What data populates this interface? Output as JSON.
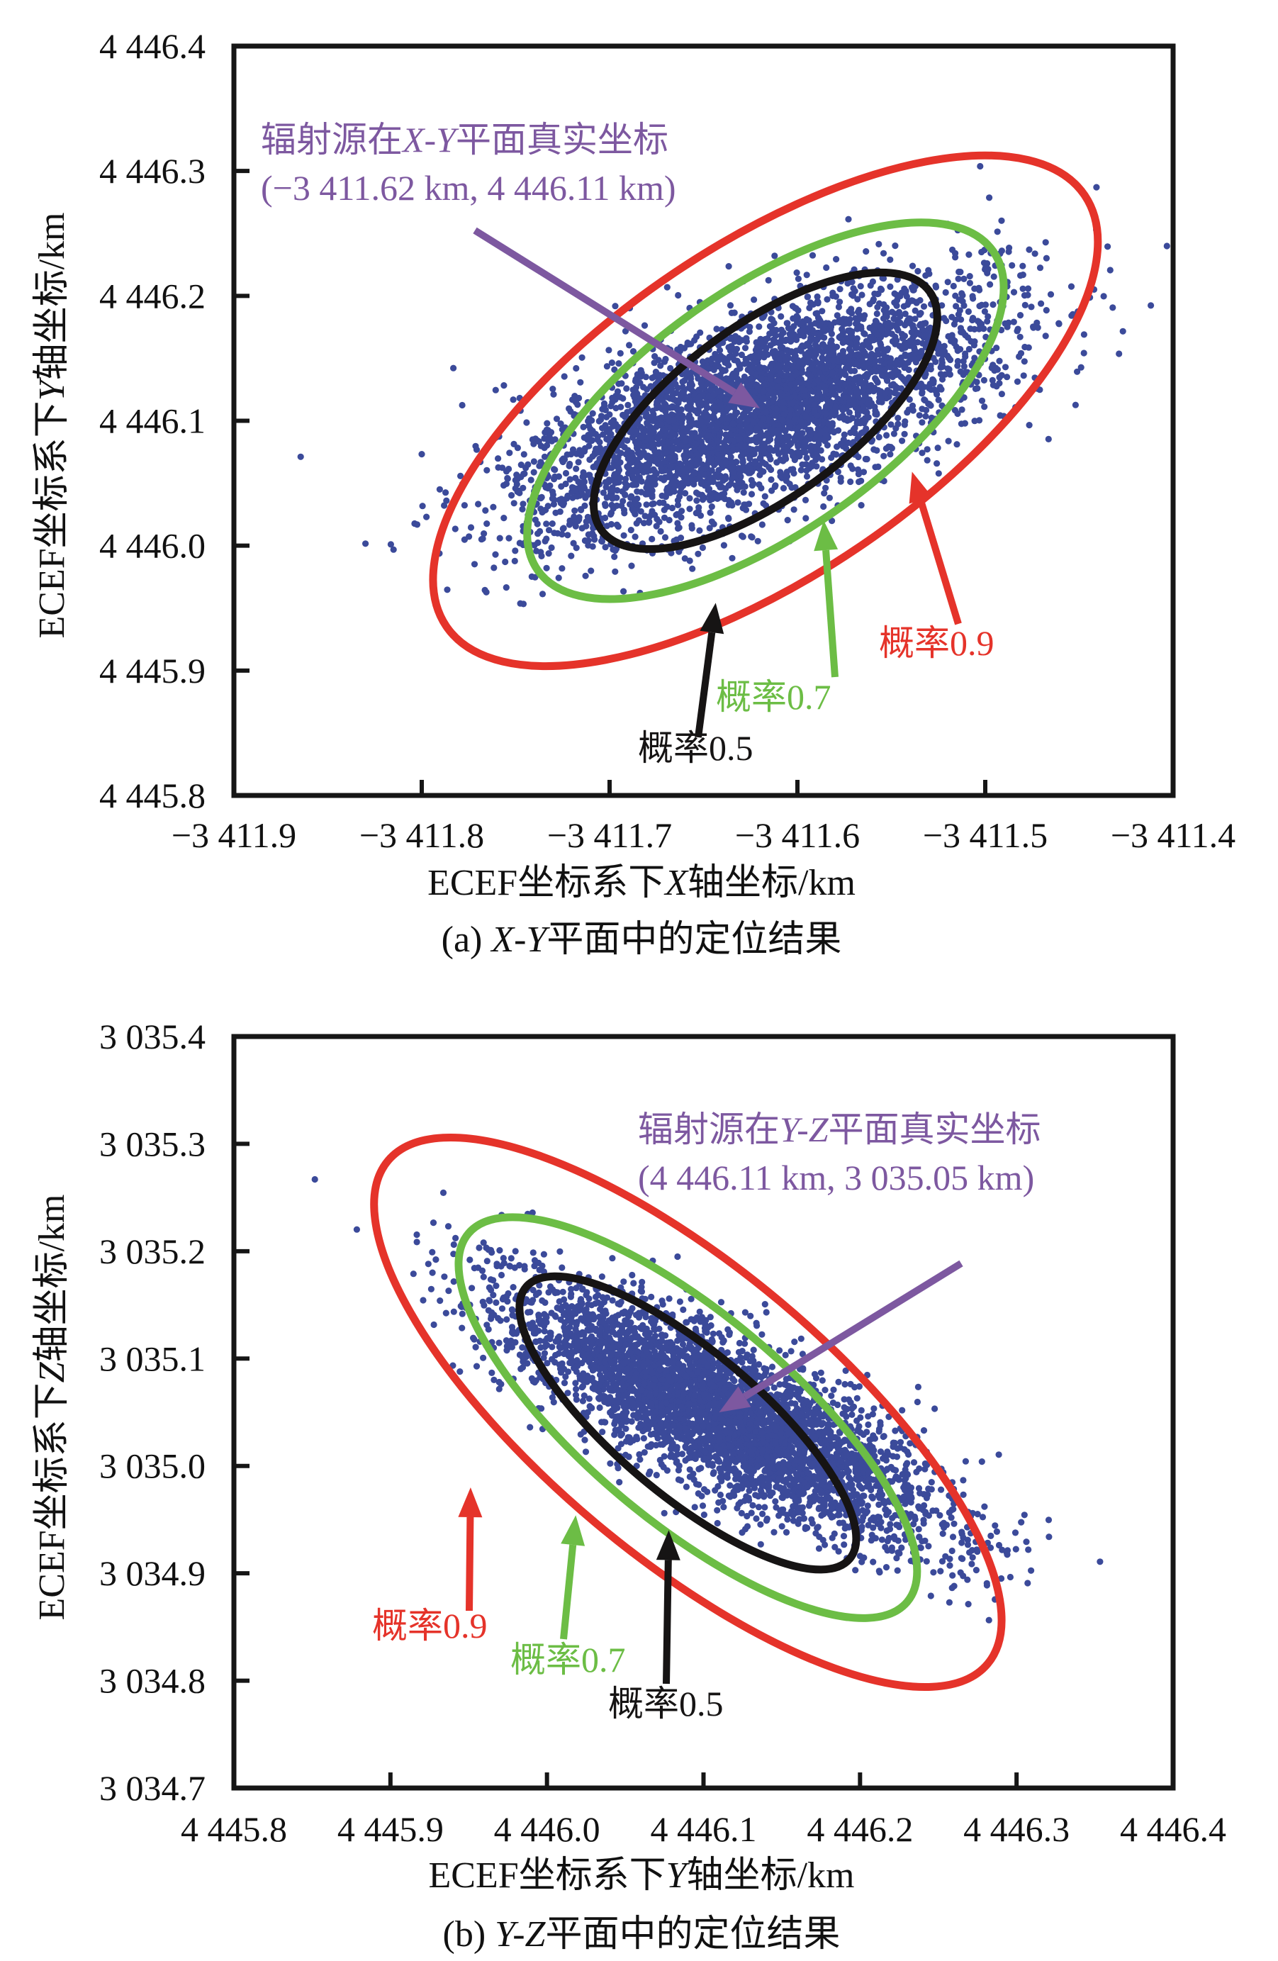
{
  "colors": {
    "points": "#3b4a9a",
    "p05": "#161414",
    "p07": "#6cbd45",
    "p09": "#e5332a",
    "true_point": "#7d58a0",
    "frame": "#161616"
  },
  "chart_data": [
    {
      "type": "scatter",
      "panel": "a",
      "caption_prefix": "(a) ",
      "caption_italic": "X-Y",
      "caption_suffix": "平面中的定位结果",
      "xlabel_prefix": "ECEF坐标系下",
      "xlabel_italic": "X",
      "xlabel_suffix": "轴坐标/km",
      "ylabel_prefix": "ECEF坐标系下",
      "ylabel_italic": "Y",
      "ylabel_suffix": "轴坐标/km",
      "xlim": [
        -3411.9,
        -3411.4
      ],
      "ylim": [
        4445.8,
        4446.4
      ],
      "xticks": [
        -3411.9,
        -3411.8,
        -3411.7,
        -3411.6,
        -3411.5,
        -3411.4
      ],
      "xtick_labels": [
        "−3 411.9",
        "−3 411.8",
        "−3 411.7",
        "−3 411.6",
        "−3 411.5",
        "−3 411.4"
      ],
      "yticks": [
        4445.8,
        4445.9,
        4446.0,
        4446.1,
        4446.2,
        4446.3,
        4446.4
      ],
      "ytick_labels": [
        "4 445.8",
        "4 445.9",
        "4 446.0",
        "4 446.1",
        "4 446.2",
        "4 446.3",
        "4 446.4"
      ],
      "grid": false,
      "scatter": {
        "count": 4200,
        "center": [
          -3411.62,
          4446.11
        ],
        "std_major": 0.072,
        "std_minor": 0.032,
        "angle_deg": 35,
        "seed": 11
      },
      "ellipses": [
        {
          "probability": 0.5,
          "label": "概率0.5",
          "center": [
            -3411.617,
            4446.108
          ],
          "semi_major": 0.108,
          "semi_minor": 0.046,
          "angle_deg": 36
        },
        {
          "probability": 0.7,
          "label": "概率0.7",
          "center": [
            -3411.617,
            4446.108
          ],
          "semi_major": 0.148,
          "semi_minor": 0.065,
          "angle_deg": 35
        },
        {
          "probability": 0.9,
          "label": "概率0.9",
          "center": [
            -3411.617,
            4446.108
          ],
          "semi_major": 0.205,
          "semi_minor": 0.088,
          "angle_deg": 34
        }
      ],
      "annotation": {
        "line1_prefix": "辐射源在",
        "line1_italic": "X-Y",
        "line1_suffix": "平面真实坐标",
        "line2": "(−3 411.62 km, 4 446.11 km)",
        "true_point": [
          -3411.62,
          4446.11
        ]
      }
    },
    {
      "type": "scatter",
      "panel": "b",
      "caption_prefix": "(b) ",
      "caption_italic": "Y-Z",
      "caption_suffix": "平面中的定位结果",
      "xlabel_prefix": "ECEF坐标系下",
      "xlabel_italic": "Y",
      "xlabel_suffix": "轴坐标/km",
      "ylabel_prefix": "ECEF坐标系下",
      "ylabel_italic": "Z",
      "ylabel_suffix": "轴坐标/km",
      "xlim": [
        4445.8,
        4446.4
      ],
      "ylim": [
        3034.7,
        3035.4
      ],
      "xticks": [
        4445.8,
        4445.9,
        4446.0,
        4446.1,
        4446.2,
        4446.3,
        4446.4
      ],
      "xtick_labels": [
        "4 445.8",
        "4 445.9",
        "4 446.0",
        "4 446.1",
        "4 446.2",
        "4 446.3",
        "4 446.4"
      ],
      "yticks": [
        3034.7,
        3034.8,
        3034.9,
        3035.0,
        3035.1,
        3035.2,
        3035.3,
        3035.4
      ],
      "ytick_labels": [
        "3 034.7",
        "3 034.8",
        "3 034.9",
        "3 035.0",
        "3 035.1",
        "3 035.2",
        "3 035.3",
        "3 035.4"
      ],
      "grid": false,
      "scatter": {
        "count": 4200,
        "center": [
          4446.11,
          3035.05
        ],
        "std_major": 0.085,
        "std_minor": 0.028,
        "angle_deg": -40,
        "seed": 23
      },
      "ellipses": [
        {
          "probability": 0.5,
          "label": "概率0.5",
          "center": [
            4446.09,
            3035.04
          ],
          "semi_major": 0.135,
          "semi_minor": 0.046,
          "angle_deg": -40
        },
        {
          "probability": 0.7,
          "label": "概率0.7",
          "center": [
            4446.09,
            3035.045
          ],
          "semi_major": 0.183,
          "semi_minor": 0.066,
          "angle_deg": -40
        },
        {
          "probability": 0.9,
          "label": "概率0.9",
          "center": [
            4446.09,
            3035.05
          ],
          "semi_major": 0.25,
          "semi_minor": 0.092,
          "angle_deg": -40
        }
      ],
      "annotation": {
        "line1_prefix": "辐射源在",
        "line1_italic": "Y-Z",
        "line1_suffix": "平面真实坐标",
        "line2": "(4 446.11 km, 3 035.05 km)",
        "true_point": [
          4446.11,
          3035.05
        ]
      }
    }
  ]
}
